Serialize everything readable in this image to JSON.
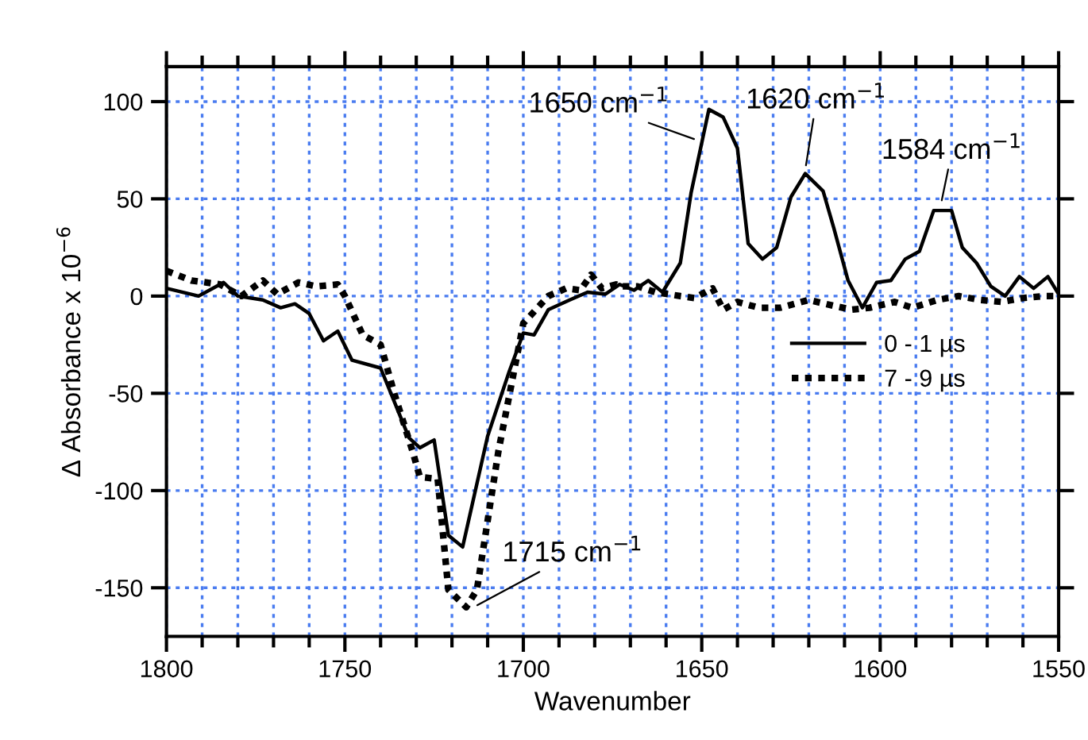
{
  "chart_data": {
    "type": "line",
    "xlabel": "Wavenumber",
    "ylabel": "Δ Absorbance x 10$^{−6}$",
    "xlim": [
      1800,
      1550
    ],
    "ylim": [
      -175,
      118
    ],
    "xticks": [
      1800,
      1750,
      1700,
      1650,
      1600,
      1550
    ],
    "yticks": [
      -150,
      -100,
      -50,
      0,
      50,
      100
    ],
    "grid": true,
    "legend": "center right",
    "marker": "none",
    "series": [
      {
        "name": "0 - 1 µs",
        "color": "#000000",
        "line_style": "solid",
        "x": [
          1800,
          1791,
          1784,
          1780,
          1773,
          1768,
          1764,
          1760,
          1756,
          1752,
          1748,
          1740,
          1732,
          1729,
          1725,
          1721,
          1717,
          1710,
          1704,
          1700,
          1697,
          1693,
          1687,
          1682,
          1677,
          1673,
          1669,
          1665,
          1661,
          1656,
          1653,
          1648,
          1644,
          1640,
          1637,
          1633,
          1629,
          1625,
          1621,
          1616,
          1613,
          1609,
          1605,
          1601,
          1597,
          1593,
          1589,
          1585,
          1580,
          1577,
          1573,
          1569,
          1565,
          1561,
          1557,
          1553,
          1550
        ],
        "values": [
          4,
          0,
          7,
          0,
          -2,
          -6,
          -4,
          -9,
          -23,
          -18,
          -33,
          -37,
          -73,
          -78,
          -74,
          -123,
          -129,
          -72,
          -39,
          -19,
          -20,
          -7,
          -2,
          2,
          1,
          6,
          3,
          8,
          2,
          17,
          53,
          96,
          92,
          76,
          27,
          19,
          25,
          51,
          63,
          54,
          35,
          8,
          -6,
          7,
          8,
          19,
          23,
          44,
          44,
          25,
          17,
          5,
          0,
          10,
          4,
          10,
          1
        ]
      },
      {
        "name": "7 - 9 µs",
        "color": "#000000",
        "line_style": "dotted",
        "x": [
          1800,
          1793,
          1785,
          1779,
          1773,
          1769,
          1763,
          1758,
          1752,
          1750,
          1745,
          1740,
          1736,
          1731,
          1729,
          1724,
          1721,
          1716,
          1713,
          1707,
          1700,
          1693,
          1688,
          1684,
          1681,
          1678,
          1674,
          1673,
          1668,
          1663,
          1656,
          1652,
          1647,
          1644,
          1640,
          1634,
          1628,
          1620,
          1613,
          1608,
          1603,
          1596,
          1591,
          1584,
          1578,
          1572,
          1566,
          1560,
          1554,
          1550
        ],
        "values": [
          13,
          8,
          6,
          0,
          8,
          1,
          7,
          5,
          6,
          0,
          -20,
          -25,
          -51,
          -80,
          -93,
          -94,
          -151,
          -160,
          -151,
          -80,
          -14,
          0,
          4,
          3,
          11,
          4,
          6,
          5,
          5,
          2,
          0,
          -1,
          4,
          -7,
          -3,
          -6,
          -6,
          -2,
          -5,
          -7,
          -6,
          -3,
          -6,
          -2,
          0,
          -2,
          -3,
          -1,
          0,
          0
        ]
      }
    ],
    "annotations": [
      {
        "text": "1650 cm$^{−1}$",
        "x": 1651,
        "y": 80
      },
      {
        "text": "1620 cm$^{−1}$",
        "x": 1621,
        "y": 65
      },
      {
        "text": "1584 cm$^{−1}$",
        "x": 1583,
        "y": 47
      },
      {
        "text": "1715 cm$^{−1}$",
        "x": 1714,
        "y": -160
      }
    ]
  }
}
